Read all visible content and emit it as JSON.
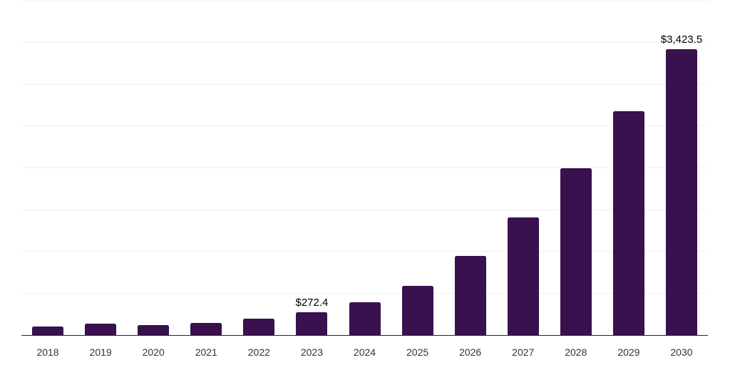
{
  "chart_data": {
    "type": "bar",
    "title": "",
    "xlabel": "",
    "ylabel": "",
    "categories": [
      "2018",
      "2019",
      "2020",
      "2021",
      "2022",
      "2023",
      "2024",
      "2025",
      "2026",
      "2027",
      "2028",
      "2029",
      "2030"
    ],
    "values": [
      105,
      137,
      117,
      149,
      194,
      272.4,
      390,
      592,
      945,
      1406,
      1998,
      2682,
      3423.5
    ],
    "data_labels": [
      "",
      "",
      "",
      "",
      "",
      "$272.4",
      "",
      "",
      "",
      "",
      "",
      "",
      "$3,423.5"
    ],
    "ylim": [
      0,
      4000
    ],
    "gridline_step": 500,
    "grid": "horizontal",
    "legend": "none",
    "y_axis_tick_labels_visible": false,
    "colors": {
      "bar": "#38114e",
      "gridline": "#f0f0f0",
      "axis_line": "#262626",
      "tick_label": "#333333",
      "data_label": "#000000",
      "background": "#ffffff"
    }
  }
}
